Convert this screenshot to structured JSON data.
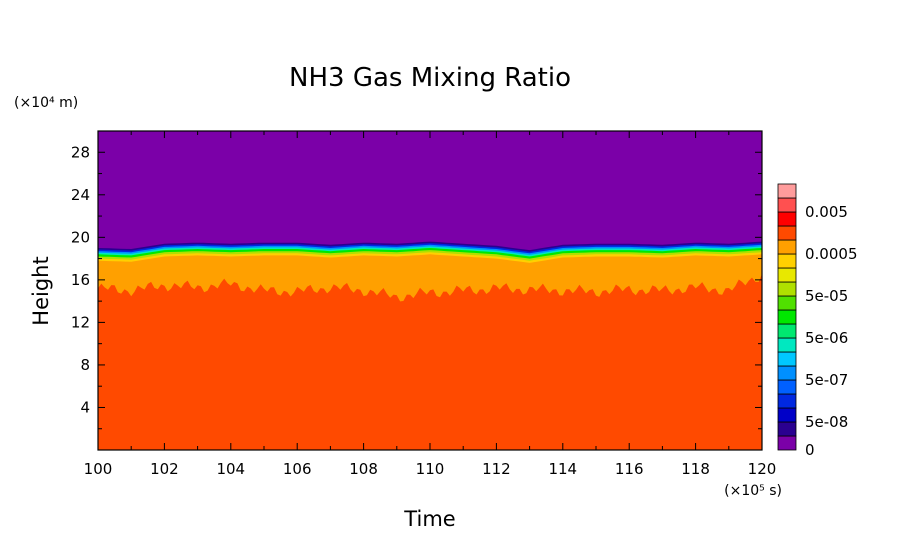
{
  "chart_data": {
    "type": "heatmap",
    "title": "NH3 Gas Mixing Ratio",
    "xlabel": "Time",
    "ylabel": "Height",
    "x_unit": "(×10⁵ s)",
    "y_unit": "(×10⁴ m)",
    "xlim": [
      100,
      120
    ],
    "ylim": [
      0,
      30
    ],
    "x_ticks": [
      100,
      102,
      104,
      106,
      108,
      110,
      112,
      114,
      116,
      118,
      120
    ],
    "y_ticks": [
      4,
      8,
      12,
      16,
      20,
      24,
      28
    ],
    "x_tick_labels": [
      "100",
      "102",
      "104",
      "106",
      "108",
      "110",
      "112",
      "114",
      "116",
      "118",
      "120"
    ],
    "y_tick_labels": [
      "4",
      "8",
      "12",
      "16",
      "20",
      "24",
      "28"
    ],
    "colorbar": {
      "colors": [
        "#7b00a8",
        "#2a0090",
        "#0000c8",
        "#0028e0",
        "#0060ff",
        "#0090ff",
        "#00c8ff",
        "#00e8c0",
        "#00e870",
        "#00e800",
        "#50e000",
        "#b0e000",
        "#e8e800",
        "#ffd000",
        "#ffa000",
        "#ff4a00",
        "#ff0000",
        "#ff5050",
        "#ff9c9c"
      ],
      "labels": [
        "0",
        "5e-08",
        "5e-07",
        "5e-06",
        "5e-05",
        "0.0005",
        "0.005"
      ]
    },
    "field": {
      "top_level": "0",
      "upper_boundary_height": [
        19.0,
        18.9,
        19.4,
        19.5,
        19.4,
        19.5,
        19.5,
        19.3,
        19.5,
        19.4,
        19.6,
        19.4,
        19.2,
        18.8,
        19.3,
        19.4,
        19.4,
        19.3,
        19.5,
        19.4,
        19.6
      ],
      "lower_boundary_height": [
        15.2,
        15.0,
        15.5,
        15.3,
        15.6,
        15.0,
        14.9,
        15.3,
        15.0,
        14.4,
        14.8,
        15.0,
        15.2,
        15.1,
        15.0,
        14.9,
        15.1,
        15.0,
        15.3,
        15.0,
        16.5
      ],
      "bottom_level": "0.0005"
    }
  }
}
